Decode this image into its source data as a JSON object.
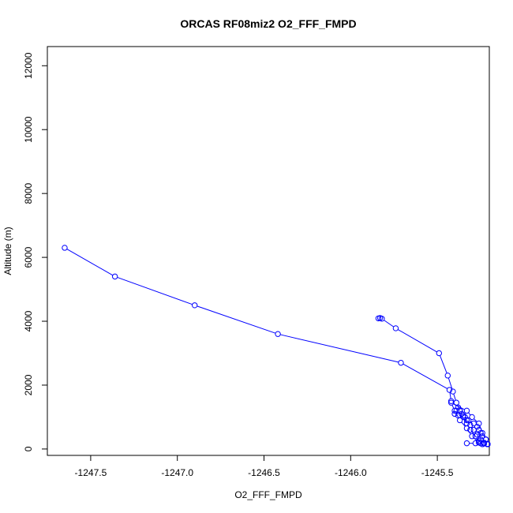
{
  "chart_data": {
    "type": "line",
    "title": "ORCAS RF08miz2 O2_FFF_FMPD",
    "xlabel": "O2_FFF_FMPD",
    "ylabel": "Altitude (m)",
    "xlim": [
      -1247.75,
      -1245.2
    ],
    "ylim": [
      -200,
      12600
    ],
    "xticks": [
      -1247.5,
      -1247.0,
      -1246.5,
      -1246.0,
      -1245.5
    ],
    "xtick_labels": [
      "-1247.5",
      "-1247.0",
      "-1246.5",
      "-1246.0",
      "-1245.5"
    ],
    "yticks": [
      0,
      2000,
      4000,
      6000,
      8000,
      10000,
      12000
    ],
    "ytick_labels": [
      "0",
      "2000",
      "4000",
      "6000",
      "8000",
      "10000",
      "12000"
    ],
    "grid": false,
    "marker": "open-circle",
    "color": "#0000ff",
    "series": [
      {
        "x": [
          -1247.65,
          -1247.36,
          -1246.9,
          -1246.42,
          -1245.71,
          -1245.43,
          -1245.42,
          -1245.38,
          -1245.37,
          -1245.36,
          -1245.34,
          -1245.32,
          -1245.29,
          -1245.27,
          -1245.26,
          -1245.25,
          -1245.24,
          -1245.22,
          -1245.21
        ],
        "y": [
          6300,
          5400,
          4500,
          3600,
          2700,
          1850,
          1500,
          1300,
          1200,
          1100,
          1000,
          900,
          800,
          700,
          600,
          500,
          400,
          300,
          150
        ]
      },
      {
        "x": [
          -1245.21,
          -1245.23,
          -1245.25,
          -1245.27,
          -1245.29,
          -1245.31,
          -1245.33,
          -1245.35,
          -1245.37,
          -1245.39,
          -1245.41,
          -1245.44,
          -1245.49,
          -1245.74,
          -1245.82,
          -1245.83,
          -1245.84
        ],
        "y": [
          150,
          200,
          300,
          450,
          600,
          750,
          900,
          1050,
          1200,
          1450,
          1800,
          2300,
          3000,
          3780,
          4080,
          4100,
          4090
        ]
      },
      {
        "x": [
          -1245.21,
          -1245.24,
          -1245.26,
          -1245.3,
          -1245.33,
          -1245.37,
          -1245.4,
          -1245.42,
          -1245.33,
          -1245.3,
          -1245.26,
          -1245.24,
          -1245.22,
          -1245.21
        ],
        "y": [
          150,
          150,
          200,
          400,
          650,
          900,
          1200,
          1450,
          1200,
          1000,
          800,
          500,
          300,
          150
        ]
      },
      {
        "x": [
          -1245.21,
          -1245.23,
          -1245.25,
          -1245.26,
          -1245.28,
          -1245.31,
          -1245.33,
          -1245.35,
          -1245.38,
          -1245.39,
          -1245.4
        ],
        "y": [
          160,
          170,
          180,
          200,
          400,
          600,
          800,
          1000,
          1050,
          1200,
          1100
        ]
      },
      {
        "x": [
          -1245.33,
          -1245.28,
          -1245.26
        ],
        "y": [
          180,
          180,
          250
        ]
      }
    ]
  }
}
